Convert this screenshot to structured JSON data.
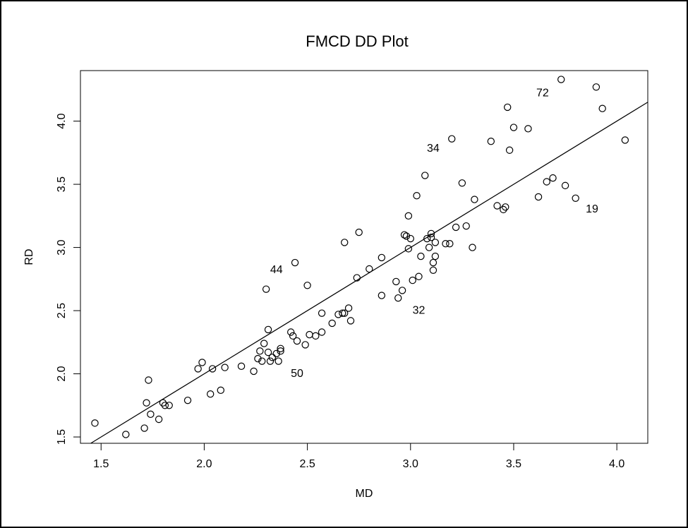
{
  "chart_data": {
    "type": "scatter",
    "title": "FMCD DD Plot",
    "xlabel": "MD",
    "ylabel": "RD",
    "xlim": [
      1.4,
      4.15
    ],
    "ylim": [
      1.45,
      4.4
    ],
    "xticks": [
      1.5,
      2.0,
      2.5,
      3.0,
      3.5,
      4.0
    ],
    "yticks": [
      1.5,
      2.0,
      2.5,
      3.0,
      3.5,
      4.0
    ],
    "xtick_labels": [
      "1.5",
      "2.0",
      "2.5",
      "3.0",
      "3.5",
      "4.0"
    ],
    "ytick_labels": [
      "1.5",
      "2.0",
      "2.5",
      "3.0",
      "3.5",
      "4.0"
    ],
    "grid": false,
    "fit_line": {
      "slope": 1.0,
      "intercept": 0.0
    },
    "points": [
      [
        1.47,
        1.61
      ],
      [
        1.62,
        1.52
      ],
      [
        1.71,
        1.57
      ],
      [
        1.72,
        1.77
      ],
      [
        1.73,
        1.95
      ],
      [
        1.74,
        1.68
      ],
      [
        1.78,
        1.64
      ],
      [
        1.8,
        1.77
      ],
      [
        1.81,
        1.75
      ],
      [
        1.83,
        1.75
      ],
      [
        1.92,
        1.79
      ],
      [
        1.97,
        2.04
      ],
      [
        1.99,
        2.09
      ],
      [
        2.03,
        1.84
      ],
      [
        2.04,
        2.04
      ],
      [
        2.08,
        1.87
      ],
      [
        2.1,
        2.05
      ],
      [
        2.18,
        2.06
      ],
      [
        2.24,
        2.02
      ],
      [
        2.26,
        2.12
      ],
      [
        2.27,
        2.18
      ],
      [
        2.28,
        2.1
      ],
      [
        2.29,
        2.24
      ],
      [
        2.3,
        2.67
      ],
      [
        2.31,
        2.35
      ],
      [
        2.31,
        2.17
      ],
      [
        2.32,
        2.1
      ],
      [
        2.33,
        2.13
      ],
      [
        2.35,
        2.16
      ],
      [
        2.36,
        2.1
      ],
      [
        2.37,
        2.18
      ],
      [
        2.37,
        2.2
      ],
      [
        2.42,
        2.33
      ],
      [
        2.43,
        2.3
      ],
      [
        2.44,
        2.88
      ],
      [
        2.45,
        2.26
      ],
      [
        2.49,
        2.23
      ],
      [
        2.5,
        2.7
      ],
      [
        2.51,
        2.31
      ],
      [
        2.54,
        2.3
      ],
      [
        2.57,
        2.48
      ],
      [
        2.57,
        2.33
      ],
      [
        2.62,
        2.4
      ],
      [
        2.65,
        2.47
      ],
      [
        2.67,
        2.48
      ],
      [
        2.68,
        2.48
      ],
      [
        2.68,
        3.04
      ],
      [
        2.7,
        2.52
      ],
      [
        2.71,
        2.42
      ],
      [
        2.74,
        2.76
      ],
      [
        2.75,
        3.12
      ],
      [
        2.8,
        2.83
      ],
      [
        2.86,
        2.92
      ],
      [
        2.86,
        2.62
      ],
      [
        2.93,
        2.73
      ],
      [
        2.94,
        2.6
      ],
      [
        2.96,
        2.66
      ],
      [
        2.97,
        3.1
      ],
      [
        2.98,
        3.09
      ],
      [
        2.99,
        3.25
      ],
      [
        2.99,
        2.99
      ],
      [
        3.0,
        3.07
      ],
      [
        3.01,
        2.74
      ],
      [
        3.03,
        3.41
      ],
      [
        3.04,
        2.77
      ],
      [
        3.05,
        2.93
      ],
      [
        3.07,
        3.57
      ],
      [
        3.08,
        3.07
      ],
      [
        3.09,
        3.0
      ],
      [
        3.1,
        3.08
      ],
      [
        3.1,
        3.11
      ],
      [
        3.11,
        2.82
      ],
      [
        3.11,
        2.88
      ],
      [
        3.12,
        3.04
      ],
      [
        3.12,
        2.93
      ],
      [
        3.17,
        3.03
      ],
      [
        3.19,
        3.03
      ],
      [
        3.2,
        3.86
      ],
      [
        3.22,
        3.16
      ],
      [
        3.25,
        3.51
      ],
      [
        3.27,
        3.17
      ],
      [
        3.3,
        3.0
      ],
      [
        3.31,
        3.38
      ],
      [
        3.39,
        3.84
      ],
      [
        3.42,
        3.33
      ],
      [
        3.45,
        3.3
      ],
      [
        3.46,
        3.32
      ],
      [
        3.47,
        4.11
      ],
      [
        3.48,
        3.77
      ],
      [
        3.5,
        3.95
      ],
      [
        3.57,
        3.94
      ],
      [
        3.62,
        3.4
      ],
      [
        3.66,
        3.52
      ],
      [
        3.69,
        3.55
      ],
      [
        3.73,
        4.33
      ],
      [
        3.75,
        3.49
      ],
      [
        3.8,
        3.39
      ],
      [
        3.9,
        4.27
      ],
      [
        3.93,
        4.1
      ],
      [
        4.04,
        3.85
      ]
    ],
    "annotations": [
      {
        "text": "72",
        "x": 3.64,
        "y": 4.22
      },
      {
        "text": "34",
        "x": 3.11,
        "y": 3.78
      },
      {
        "text": "19",
        "x": 3.88,
        "y": 3.3
      },
      {
        "text": "44",
        "x": 2.35,
        "y": 2.82
      },
      {
        "text": "32",
        "x": 3.04,
        "y": 2.5
      },
      {
        "text": "50",
        "x": 2.45,
        "y": 2.0
      }
    ]
  }
}
